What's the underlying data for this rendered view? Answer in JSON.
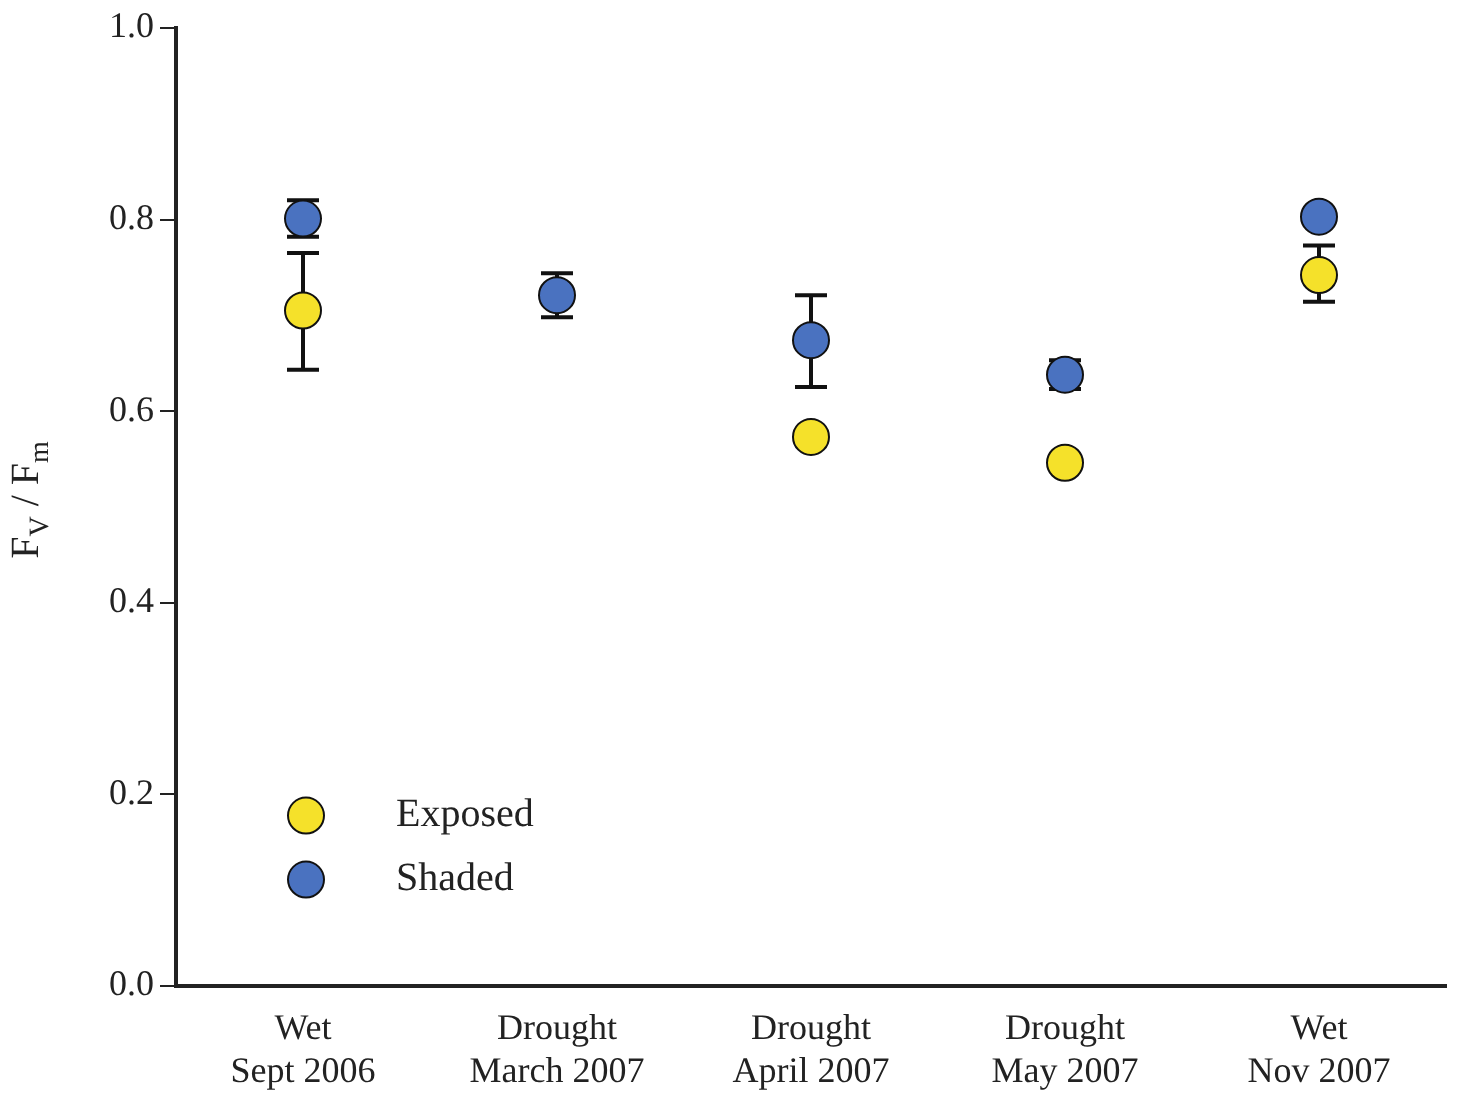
{
  "chart_data": {
    "type": "scatter",
    "ylabel": "F$_{V}$ / F$_{m}$",
    "categories": [
      "Wet\nSept 2006",
      "Drought\nMarch 2007",
      "Drought\nApril 2007",
      "Drought\nMay 2007",
      "Wet\nNov 2007"
    ],
    "series": [
      {
        "name": "Exposed",
        "color": "#f5e12a",
        "values": [
          0.705,
          null,
          0.573,
          0.546,
          0.742
        ],
        "errors": [
          [
            0.643,
            0.765
          ],
          null,
          null,
          null,
          [
            0.714,
            0.773
          ]
        ]
      },
      {
        "name": "Shaded",
        "color": "#4a72c0",
        "values": [
          0.801,
          0.721,
          0.674,
          0.638,
          0.803
        ],
        "errors": [
          [
            0.782,
            0.82
          ],
          [
            0.698,
            0.744
          ],
          [
            0.625,
            0.721
          ],
          [
            0.623,
            0.653
          ],
          null
        ]
      }
    ],
    "ylim": [
      0,
      1
    ],
    "yticks": [
      {
        "value": 0,
        "label": "0.0"
      },
      0.2,
      0.4,
      0.6,
      0.8,
      {
        "value": 1,
        "label": "1.0"
      }
    ],
    "grid": false,
    "legend": "bottom left",
    "marker": "circle"
  }
}
